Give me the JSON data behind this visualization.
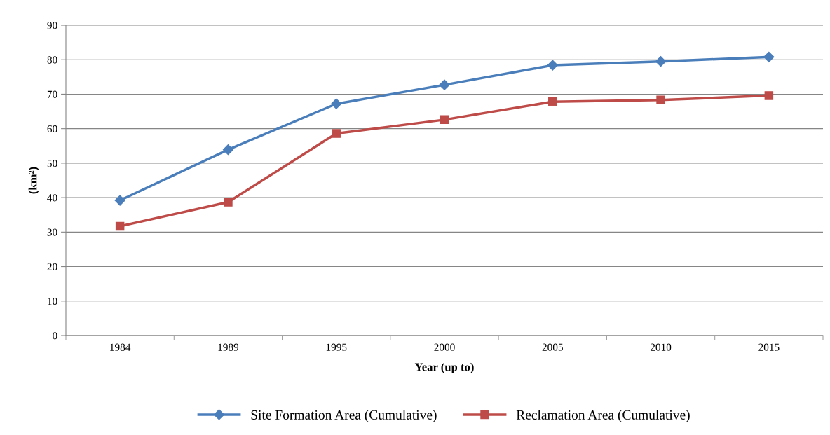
{
  "chart_data": {
    "type": "line",
    "xlabel": "Year (up to)",
    "ylabel": "(km²)",
    "categories": [
      "1984",
      "1989",
      "1995",
      "2000",
      "2005",
      "2010",
      "2015"
    ],
    "series": [
      {
        "name": "Site Formation Area (Cumulative)",
        "color": "#4a7ebb",
        "marker": "diamond",
        "values": [
          39.2,
          53.9,
          67.2,
          72.7,
          78.4,
          79.5,
          80.8
        ]
      },
      {
        "name": "Reclamation Area (Cumulative)",
        "color": "#be4b48",
        "marker": "square",
        "values": [
          31.7,
          38.7,
          58.6,
          62.6,
          67.8,
          68.3,
          69.6
        ]
      }
    ],
    "ylim": [
      0,
      90
    ],
    "yticks": [
      0,
      10,
      20,
      30,
      40,
      50,
      60,
      70,
      80,
      90
    ],
    "grid": "y",
    "legend": "bottom",
    "line_style": "solid"
  }
}
